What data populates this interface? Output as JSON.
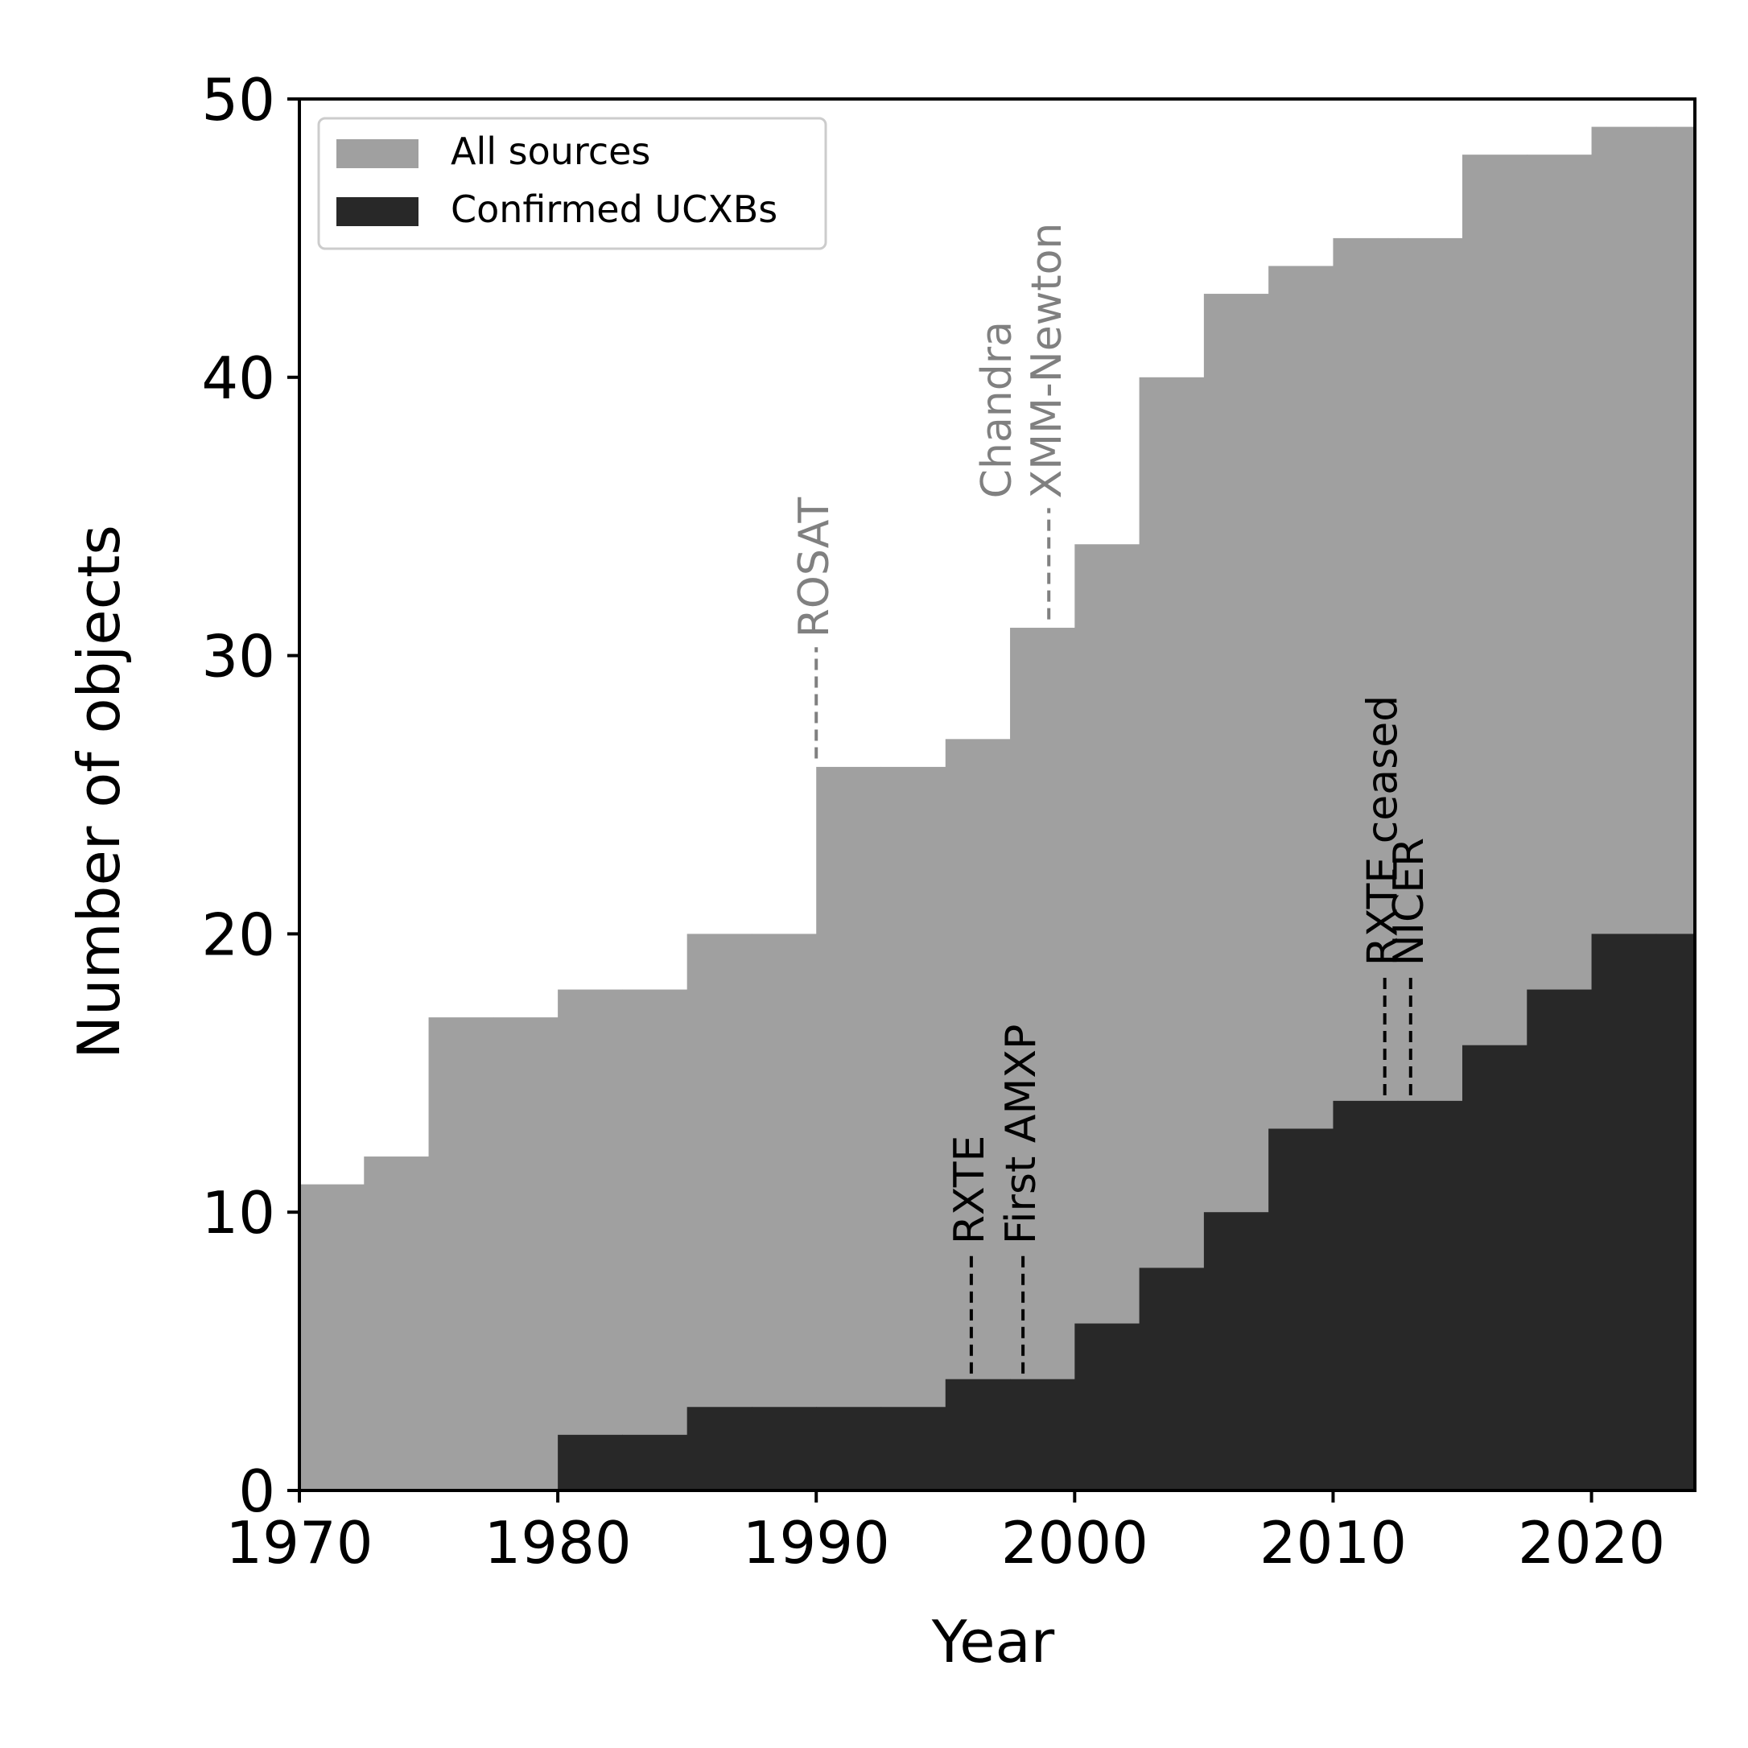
{
  "chart_data": {
    "type": "area",
    "title": "",
    "xlabel": "Year",
    "ylabel": "Number of objects",
    "xlim": [
      1970,
      2024
    ],
    "ylim": [
      0,
      50
    ],
    "xticks": [
      1970,
      1980,
      1990,
      2000,
      2010,
      2020
    ],
    "yticks": [
      0,
      10,
      20,
      30,
      40,
      50
    ],
    "legend_position": "top-left",
    "colors": {
      "all": "#a0a0a0",
      "confirmed": "#282828",
      "axis": "#000000",
      "annot_gray": "#808080",
      "annot_black": "#000000"
    },
    "series": [
      {
        "name": "All sources",
        "step_edges": [
          1970,
          1972.5,
          1975,
          1977.5,
          1980,
          1982.5,
          1985,
          1987.5,
          1990,
          1992.5,
          1995,
          1997.5,
          2000,
          2002.5,
          2005,
          2007.5,
          2010,
          2012.5,
          2015,
          2017.5,
          2020,
          2022.5,
          2024
        ],
        "values": [
          11,
          12,
          17,
          17,
          18,
          18,
          20,
          20,
          26,
          26,
          27,
          31,
          34,
          40,
          43,
          44,
          45,
          45,
          48,
          48,
          49,
          49
        ]
      },
      {
        "name": "Confirmed UCXBs",
        "step_edges": [
          1970,
          1972.5,
          1975,
          1977.5,
          1980,
          1982.5,
          1985,
          1987.5,
          1990,
          1992.5,
          1995,
          1997.5,
          2000,
          2002.5,
          2005,
          2007.5,
          2010,
          2012.5,
          2015,
          2017.5,
          2020,
          2022.5,
          2024
        ],
        "values": [
          0,
          0,
          0,
          0,
          2,
          2,
          3,
          3,
          3,
          3,
          4,
          4,
          6,
          8,
          10,
          13,
          14,
          14,
          16,
          18,
          20,
          20
        ]
      }
    ],
    "annotations": [
      {
        "lines": [
          "ROSAT"
        ],
        "year": 1990,
        "y_bottom": 26.3,
        "y_top": 30.3,
        "style": "gray"
      },
      {
        "lines": [
          "Chandra",
          "XMM-Newton"
        ],
        "year": 1999,
        "y_bottom": 31.3,
        "y_top": 35.3,
        "style": "gray"
      },
      {
        "lines": [
          "RXTE"
        ],
        "year": 1996,
        "y_bottom": 4.2,
        "y_top": 8.5,
        "style": "black"
      },
      {
        "lines": [
          "First AMXP"
        ],
        "year": 1998,
        "y_bottom": 4.2,
        "y_top": 8.5,
        "style": "black"
      },
      {
        "lines": [
          "RXTE ceased"
        ],
        "year": 2012,
        "y_bottom": 14.2,
        "y_top": 18.5,
        "style": "black"
      },
      {
        "lines": [
          "NICER"
        ],
        "year": 2013,
        "y_bottom": 14.2,
        "y_top": 18.5,
        "style": "black"
      }
    ]
  }
}
